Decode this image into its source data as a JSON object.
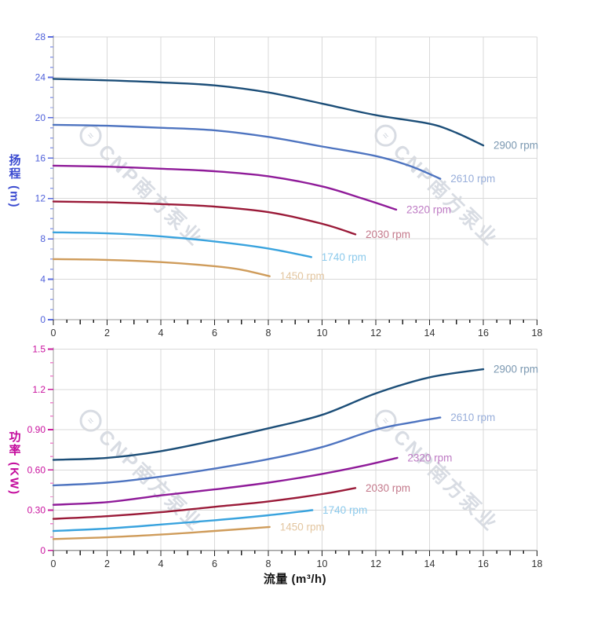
{
  "watermark": {
    "text": "CNP南方泵业"
  },
  "colors": {
    "background": "#ffffff",
    "grid": "#d9d9d9",
    "axis_line": "#9b9b9b",
    "x_tick": "#1f1f1f",
    "head_axis_accent": "#5b6ce0",
    "head_axis_minor": "#93a0ec",
    "power_axis_accent": "#cb1d9f",
    "power_axis_minor": "#ee86cd"
  },
  "charts": {
    "head": {
      "y_title": "扬程 (m)",
      "y_tick_labels": [
        "0",
        "4",
        "8",
        "12",
        "16",
        "20",
        "24",
        "28"
      ],
      "x_tick_labels": [
        "0",
        "2",
        "4",
        "6",
        "8",
        "10",
        "12",
        "14",
        "16",
        "18"
      ]
    },
    "power": {
      "y_title": "功率 (KW)",
      "x_title": "流量 (m³/h)",
      "y_tick_labels": [
        "0",
        "0.30",
        "0.60",
        "0.90",
        "1.2",
        "1.5"
      ],
      "x_tick_labels": [
        "0",
        "2",
        "4",
        "6",
        "8",
        "10",
        "12",
        "14",
        "16",
        "18"
      ]
    }
  },
  "chart_data": [
    {
      "type": "line",
      "title": "Pump head curves (扬程-流量)",
      "xlabel": "流量 (m³/h)",
      "ylabel": "扬程 (m)",
      "xlim": [
        0,
        18
      ],
      "ylim": [
        0,
        28
      ],
      "x_major": 2,
      "y_major": 4,
      "grid": true,
      "legend_position": "curve-end-labels",
      "series": [
        {
          "name": "2900 rpm",
          "color": "#1c4e78",
          "points": [
            [
              0,
              23.85
            ],
            [
              2,
              23.7
            ],
            [
              4,
              23.5
            ],
            [
              6,
              23.2
            ],
            [
              8,
              22.5
            ],
            [
              10,
              21.4
            ],
            [
              12,
              20.25
            ],
            [
              14,
              19.4
            ],
            [
              15,
              18.5
            ],
            [
              16,
              17.25
            ]
          ]
        },
        {
          "name": "2610 rpm",
          "color": "#4e74c0",
          "points": [
            [
              0,
              19.3
            ],
            [
              2,
              19.2
            ],
            [
              4,
              19.0
            ],
            [
              6,
              18.75
            ],
            [
              8,
              18.1
            ],
            [
              10,
              17.15
            ],
            [
              12,
              16.2
            ],
            [
              13.3,
              15.2
            ],
            [
              14.4,
              13.95
            ]
          ]
        },
        {
          "name": "2320 rpm",
          "color": "#8f1b99",
          "points": [
            [
              0,
              15.25
            ],
            [
              2,
              15.15
            ],
            [
              4,
              14.95
            ],
            [
              6,
              14.7
            ],
            [
              8,
              14.2
            ],
            [
              10,
              13.2
            ],
            [
              11.5,
              12.0
            ],
            [
              12.76,
              10.9
            ]
          ]
        },
        {
          "name": "2030 rpm",
          "color": "#9a1a38",
          "points": [
            [
              0,
              11.7
            ],
            [
              2,
              11.62
            ],
            [
              4,
              11.45
            ],
            [
              6,
              11.2
            ],
            [
              8,
              10.65
            ],
            [
              10,
              9.5
            ],
            [
              11.24,
              8.45
            ]
          ]
        },
        {
          "name": "1740 rpm",
          "color": "#39a3de",
          "points": [
            [
              0,
              8.65
            ],
            [
              2,
              8.55
            ],
            [
              4,
              8.25
            ],
            [
              6,
              7.75
            ],
            [
              8,
              7.05
            ],
            [
              9.6,
              6.2
            ]
          ]
        },
        {
          "name": "1450 rpm",
          "color": "#cf9c5b",
          "points": [
            [
              0,
              6.0
            ],
            [
              2,
              5.92
            ],
            [
              4,
              5.7
            ],
            [
              6,
              5.3
            ],
            [
              7,
              4.95
            ],
            [
              8.05,
              4.3
            ]
          ]
        }
      ]
    },
    {
      "type": "line",
      "title": "Pump power curves (功率-流量)",
      "xlabel": "流量 (m³/h)",
      "ylabel": "功率 (KW)",
      "xlim": [
        0,
        18
      ],
      "ylim": [
        0,
        1.5
      ],
      "x_major": 2,
      "y_major": 0.3,
      "grid": true,
      "legend_position": "curve-end-labels",
      "series": [
        {
          "name": "2900 rpm",
          "color": "#1c4e78",
          "points": [
            [
              0,
              0.675
            ],
            [
              2,
              0.69
            ],
            [
              4,
              0.74
            ],
            [
              6,
              0.82
            ],
            [
              8,
              0.91
            ],
            [
              10,
              1.01
            ],
            [
              12,
              1.17
            ],
            [
              14,
              1.29
            ],
            [
              16,
              1.35
            ]
          ]
        },
        {
          "name": "2610 rpm",
          "color": "#4e74c0",
          "points": [
            [
              0,
              0.485
            ],
            [
              2,
              0.505
            ],
            [
              4,
              0.55
            ],
            [
              6,
              0.61
            ],
            [
              8,
              0.68
            ],
            [
              10,
              0.77
            ],
            [
              12,
              0.9
            ],
            [
              13.5,
              0.96
            ],
            [
              14.4,
              0.99
            ]
          ]
        },
        {
          "name": "2320 rpm",
          "color": "#8f1b99",
          "points": [
            [
              0,
              0.34
            ],
            [
              2,
              0.36
            ],
            [
              4,
              0.41
            ],
            [
              6,
              0.455
            ],
            [
              8,
              0.505
            ],
            [
              10,
              0.57
            ],
            [
              11.5,
              0.63
            ],
            [
              12.8,
              0.69
            ]
          ]
        },
        {
          "name": "2030 rpm",
          "color": "#9a1a38",
          "points": [
            [
              0,
              0.235
            ],
            [
              2,
              0.255
            ],
            [
              4,
              0.285
            ],
            [
              6,
              0.325
            ],
            [
              8,
              0.365
            ],
            [
              10,
              0.42
            ],
            [
              11.24,
              0.465
            ]
          ]
        },
        {
          "name": "1740 rpm",
          "color": "#39a3de",
          "points": [
            [
              0,
              0.145
            ],
            [
              2,
              0.163
            ],
            [
              4,
              0.193
            ],
            [
              6,
              0.225
            ],
            [
              8,
              0.262
            ],
            [
              9.64,
              0.3
            ]
          ]
        },
        {
          "name": "1450 rpm",
          "color": "#cf9c5b",
          "points": [
            [
              0,
              0.085
            ],
            [
              2,
              0.098
            ],
            [
              4,
              0.118
            ],
            [
              6,
              0.145
            ],
            [
              8.05,
              0.175
            ]
          ]
        }
      ]
    }
  ]
}
